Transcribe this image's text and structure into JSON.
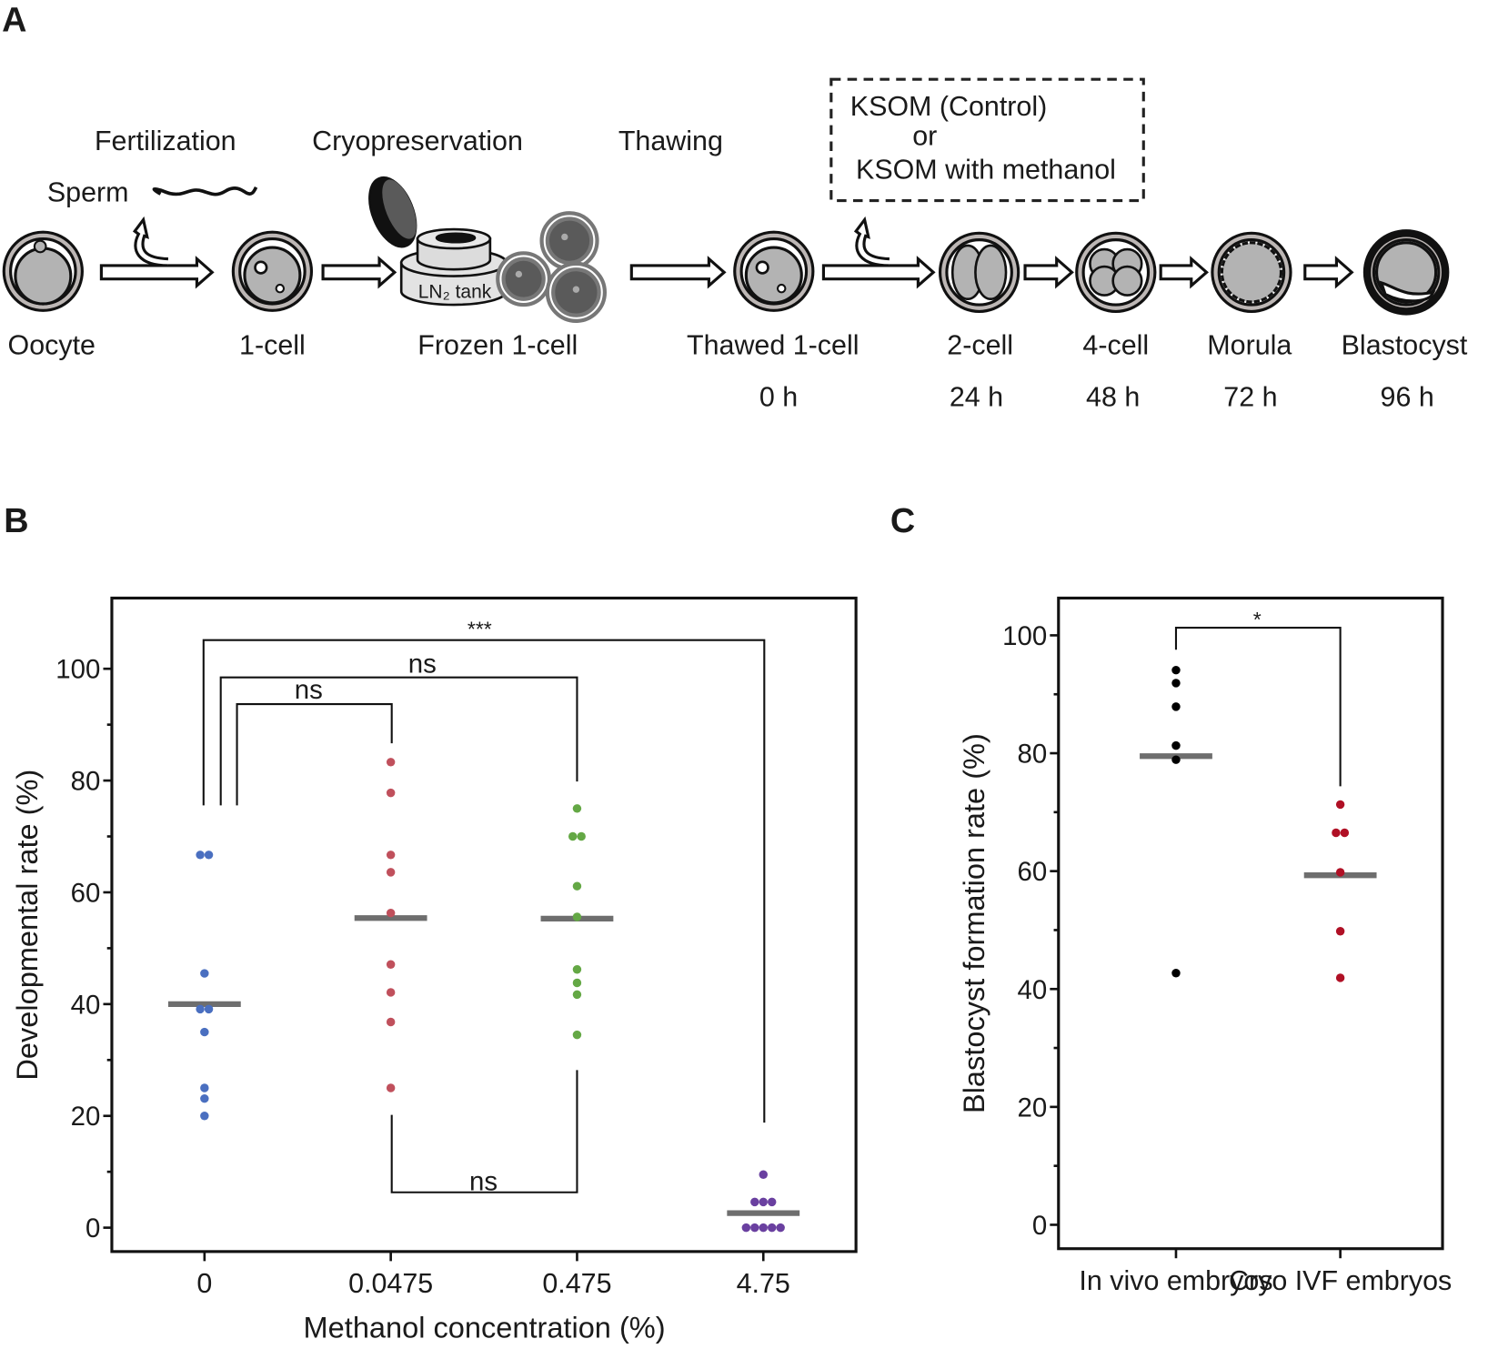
{
  "panel_labels": {
    "a": "A",
    "b": "B",
    "c": "C"
  },
  "schematic": {
    "steps": {
      "fertilization": "Fertilization",
      "cryopreservation": "Cryopreservation",
      "thawing": "Thawing"
    },
    "sperm_label": "Sperm",
    "tank_label": "LN₂ tank",
    "medium_box": {
      "line1": "KSOM (Control)",
      "line2": "or",
      "line3": "KSOM with methanol"
    },
    "stages": [
      {
        "name": "Oocyte",
        "time": ""
      },
      {
        "name": "1-cell",
        "time": ""
      },
      {
        "name": "Frozen 1-cell",
        "time": ""
      },
      {
        "name": "Thawed 1-cell",
        "time": "0 h"
      },
      {
        "name": "2-cell",
        "time": "24 h"
      },
      {
        "name": "4-cell",
        "time": "48 h"
      },
      {
        "name": "Morula",
        "time": "72 h"
      },
      {
        "name": "Blastocyst",
        "time": "96 h"
      }
    ]
  },
  "chart_data": [
    {
      "type": "scatter",
      "panel": "B",
      "xlabel": "Methanol concentration (%)",
      "ylabel": "Developmental rate (%)",
      "ylim": [
        -4,
        112
      ],
      "yticks": [
        0,
        20,
        40,
        60,
        80,
        100
      ],
      "categories": [
        "0",
        "0.0475",
        "0.475",
        "4.75"
      ],
      "series": [
        {
          "name": "0",
          "color": "#4a6fc0",
          "mean": 40.0,
          "values": [
            66.7,
            66.7,
            45.5,
            39.1,
            39.1,
            35.0,
            25.0,
            23.1,
            20.0
          ]
        },
        {
          "name": "0.0475",
          "color": "#c0505c",
          "mean": 55.4,
          "values": [
            83.3,
            77.8,
            66.7,
            63.6,
            56.3,
            47.1,
            42.1,
            36.8,
            25.0
          ]
        },
        {
          "name": "0.475",
          "color": "#64a845",
          "mean": 55.3,
          "values": [
            75.0,
            70.0,
            70.0,
            61.1,
            55.6,
            46.2,
            43.8,
            41.7,
            34.5
          ]
        },
        {
          "name": "4.75",
          "color": "#6a40a0",
          "mean": 2.6,
          "values": [
            9.5,
            4.6,
            4.6,
            4.6,
            0,
            0,
            0,
            0,
            0
          ]
        }
      ],
      "annotations": [
        {
          "from": "0",
          "to": "4.75",
          "label": "***"
        },
        {
          "from": "0",
          "to": "0.475",
          "label": "ns"
        },
        {
          "from": "0",
          "to": "0.0475",
          "label": "ns"
        },
        {
          "from": "0.0475",
          "to": "0.475",
          "label": "ns"
        }
      ]
    },
    {
      "type": "scatter",
      "panel": "C",
      "xlabel": "",
      "ylabel": "Blastocyst formation rate (%)",
      "ylim": [
        -4,
        106
      ],
      "yticks": [
        0,
        20,
        40,
        60,
        80,
        100
      ],
      "categories": [
        "In vivo embryos",
        "Cryo IVF embryos"
      ],
      "series": [
        {
          "name": "In vivo embryos",
          "color": "#000000",
          "mean": 79.5,
          "values": [
            94.1,
            91.9,
            87.9,
            81.3,
            78.9,
            42.7
          ]
        },
        {
          "name": "Cryo IVF embryos",
          "color": "#b01025",
          "mean": 59.3,
          "values": [
            71.3,
            66.5,
            66.5,
            59.8,
            49.8,
            41.9
          ]
        }
      ],
      "annotations": [
        {
          "from": "In vivo embryos",
          "to": "Cryo IVF embryos",
          "label": "*"
        }
      ]
    }
  ]
}
